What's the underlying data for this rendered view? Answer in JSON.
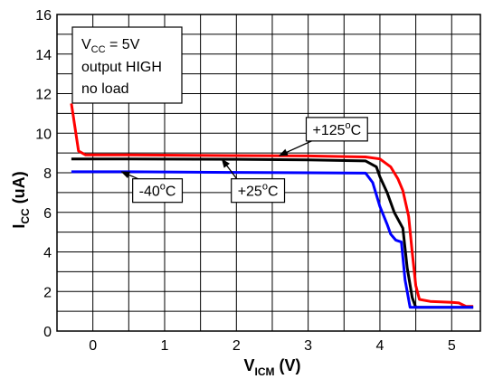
{
  "chart_data": {
    "type": "line",
    "xlim": [
      -0.5,
      5.4
    ],
    "ylim": [
      0,
      16
    ],
    "xticks": [
      0,
      1,
      2,
      3,
      4,
      5
    ],
    "yticks": [
      0,
      2,
      4,
      6,
      8,
      10,
      12,
      14,
      16
    ],
    "xlabel": {
      "main": "V",
      "sub": "ICM",
      "unit": " (V)"
    },
    "ylabel": {
      "main": "I",
      "sub": "CC",
      "unit": " (uA)"
    },
    "grid": true,
    "series": [
      {
        "name": "+125°C",
        "color": "#ff0000",
        "points": [
          [
            -0.3,
            11.5
          ],
          [
            -0.2,
            9.1
          ],
          [
            -0.1,
            8.9
          ],
          [
            0.5,
            8.9
          ],
          [
            2.0,
            8.87
          ],
          [
            3.0,
            8.85
          ],
          [
            3.8,
            8.8
          ],
          [
            4.0,
            8.7
          ],
          [
            4.15,
            8.3
          ],
          [
            4.25,
            7.7
          ],
          [
            4.32,
            7.1
          ],
          [
            4.4,
            5.8
          ],
          [
            4.45,
            4.0
          ],
          [
            4.5,
            2.3
          ],
          [
            4.55,
            1.6
          ],
          [
            4.7,
            1.5
          ],
          [
            5.0,
            1.45
          ],
          [
            5.1,
            1.42
          ],
          [
            5.2,
            1.25
          ],
          [
            5.3,
            1.25
          ]
        ]
      },
      {
        "name": "+25°C",
        "color": "#000000",
        "points": [
          [
            -0.3,
            8.7
          ],
          [
            0.5,
            8.7
          ],
          [
            2.0,
            8.68
          ],
          [
            3.0,
            8.65
          ],
          [
            3.8,
            8.6
          ],
          [
            3.95,
            8.3
          ],
          [
            4.0,
            7.8
          ],
          [
            4.1,
            7.0
          ],
          [
            4.2,
            6.0
          ],
          [
            4.32,
            5.2
          ],
          [
            4.38,
            3.2
          ],
          [
            4.45,
            1.7
          ],
          [
            4.5,
            1.2
          ],
          [
            5.0,
            1.2
          ],
          [
            5.3,
            1.2
          ]
        ]
      },
      {
        "name": "-40°C",
        "color": "#0000ff",
        "points": [
          [
            -0.3,
            8.05
          ],
          [
            0.5,
            8.05
          ],
          [
            2.0,
            8.02
          ],
          [
            3.0,
            8.0
          ],
          [
            3.8,
            7.98
          ],
          [
            3.9,
            7.5
          ],
          [
            4.0,
            6.3
          ],
          [
            4.1,
            5.4
          ],
          [
            4.15,
            4.9
          ],
          [
            4.22,
            4.6
          ],
          [
            4.3,
            4.5
          ],
          [
            4.35,
            2.6
          ],
          [
            4.42,
            1.2
          ],
          [
            5.0,
            1.2
          ],
          [
            5.3,
            1.2
          ]
        ]
      }
    ],
    "conditions_box": {
      "line1_main": "V",
      "line1_sub": "CC",
      "line1_rest": " = 5V",
      "line2": "output HIGH",
      "line3": "no load"
    },
    "annotations": [
      {
        "series": "+125°C",
        "text": "+125°C",
        "text_main": "+125",
        "text_sup": "o",
        "text_rest": "C",
        "at": [
          3.4,
          10.2
        ],
        "arrow_to": [
          2.6,
          8.87
        ]
      },
      {
        "series": "+25°C",
        "text": "+25°C",
        "text_main": "+25",
        "text_sup": "o",
        "text_rest": "C",
        "at": [
          2.3,
          7.1
        ],
        "arrow_to": [
          1.8,
          8.68
        ]
      },
      {
        "series": "-40°C",
        "text": "-40°C",
        "text_main": "-40",
        "text_sup": "o",
        "text_rest": "C",
        "at": [
          0.9,
          7.1
        ],
        "arrow_to": [
          0.4,
          8.05
        ]
      }
    ]
  }
}
